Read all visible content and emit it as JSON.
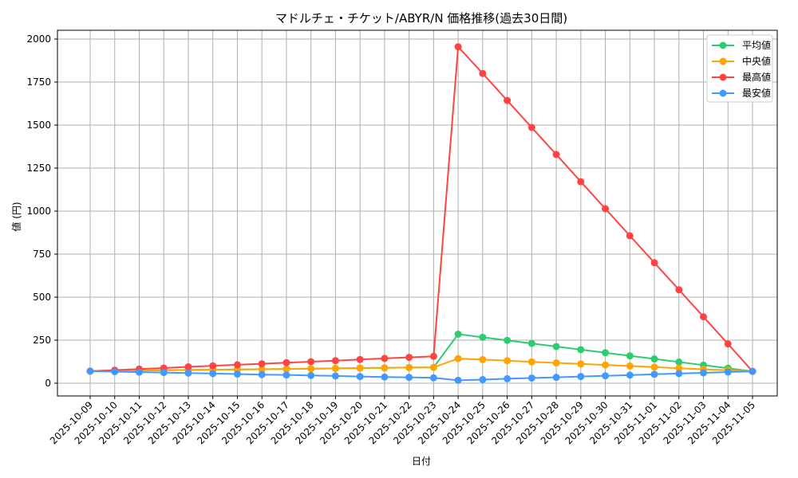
{
  "chart_data": {
    "type": "line",
    "title": "マドルチェ・チケット/ABYR/N 価格推移(過去30日間)",
    "xlabel": "日付",
    "ylabel": "値 (円)",
    "ylim": [
      -70,
      2060
    ],
    "yticks": [
      0,
      250,
      500,
      750,
      1000,
      1250,
      1500,
      1750,
      2000
    ],
    "grid": true,
    "legend_position": "top-right",
    "x": [
      "2025-10-09",
      "2025-10-10",
      "2025-10-11",
      "2025-10-12",
      "2025-10-13",
      "2025-10-14",
      "2025-10-15",
      "2025-10-16",
      "2025-10-17",
      "2025-10-18",
      "2025-10-19",
      "2025-10-20",
      "2025-10-21",
      "2025-10-22",
      "2025-10-23",
      "2025-10-24",
      "2025-10-25",
      "2025-10-26",
      "2025-10-27",
      "2025-10-28",
      "2025-10-29",
      "2025-10-30",
      "2025-10-31",
      "2025-11-01",
      "2025-11-02",
      "2025-11-03",
      "2025-11-04",
      "2025-11-05"
    ],
    "series": [
      {
        "name": "平均値",
        "color": "#2ecc71",
        "values": [
          70,
          72,
          73,
          75,
          77,
          78,
          80,
          81,
          83,
          84,
          86,
          88,
          89,
          91,
          92,
          285,
          267,
          249,
          231,
          213,
          195,
          177,
          159,
          141,
          123,
          105,
          87,
          69
        ]
      },
      {
        "name": "中央値",
        "color": "#ffa500",
        "values": [
          70,
          72,
          73,
          75,
          77,
          78,
          80,
          81,
          83,
          84,
          86,
          88,
          89,
          91,
          92,
          143,
          137,
          131,
          124,
          118,
          112,
          106,
          100,
          94,
          87,
          81,
          75,
          69
        ]
      },
      {
        "name": "最高値",
        "color": "#ff4444",
        "values": [
          70,
          76,
          82,
          88,
          95,
          101,
          107,
          113,
          119,
          125,
          131,
          138,
          144,
          150,
          156,
          1955,
          1800,
          1643,
          1486,
          1329,
          1171,
          1014,
          857,
          700,
          543,
          386,
          228,
          69
        ]
      },
      {
        "name": "最安値",
        "color": "#4499ff",
        "values": [
          70,
          67,
          64,
          62,
          59,
          56,
          53,
          50,
          48,
          45,
          42,
          39,
          36,
          34,
          31,
          17,
          21,
          26,
          30,
          34,
          39,
          43,
          47,
          52,
          56,
          60,
          65,
          69
        ]
      }
    ]
  }
}
